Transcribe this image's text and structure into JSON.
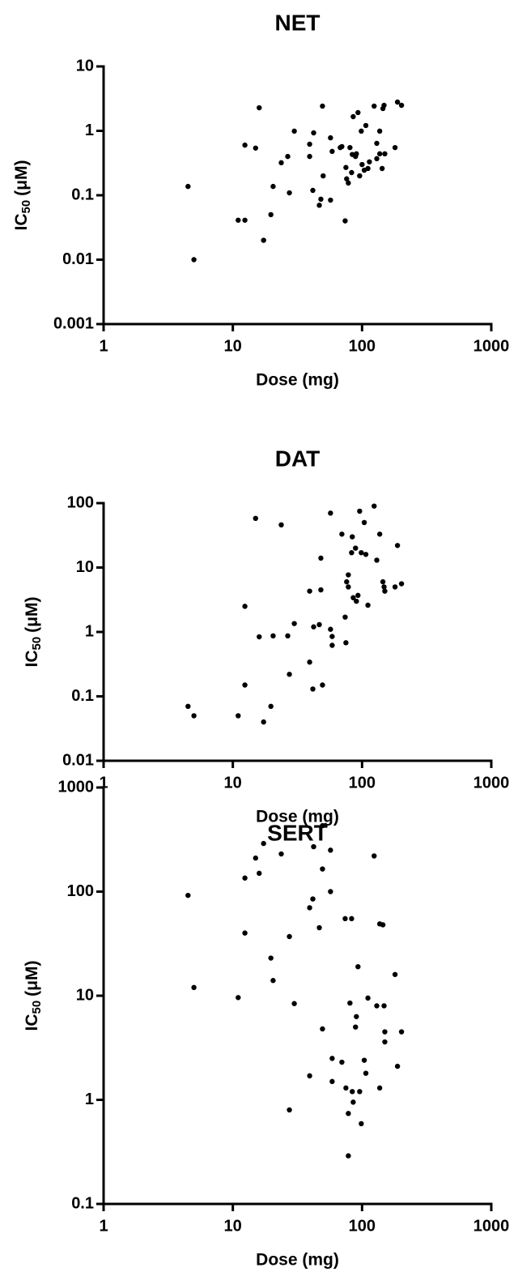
{
  "chart_data": [
    {
      "type": "scatter",
      "title": "NET",
      "xlabel": "Dose (mg)",
      "ylabel_parts": [
        "IC",
        "50",
        "(μM)"
      ],
      "xscale": "log",
      "yscale": "log",
      "xlim": [
        1,
        1000
      ],
      "ylim": [
        0.001,
        10
      ],
      "xticks": [
        1,
        10,
        100,
        1000
      ],
      "yticks": [
        0.001,
        0.01,
        0.1,
        1,
        10
      ],
      "color": "#000000",
      "series": [
        {
          "name": "NET",
          "x": [
            4.5,
            5,
            11,
            12.4,
            12.4,
            15,
            16,
            17.3,
            19.7,
            20.5,
            23.7,
            26.6,
            27.4,
            29.9,
            39.3,
            39.3,
            41.6,
            42.2,
            46.7,
            48,
            49.4,
            50,
            57,
            57,
            58.7,
            67.8,
            69.8,
            74,
            75,
            76,
            78.3,
            80.6,
            83,
            84,
            85.4,
            89,
            90.4,
            93,
            95.8,
            98.6,
            100,
            104,
            107,
            111,
            114,
            124,
            130,
            130,
            137,
            137,
            143,
            145,
            148,
            150,
            180,
            188,
            202
          ],
          "y": [
            0.137,
            0.01,
            0.041,
            0.041,
            0.6,
            0.54,
            2.28,
            0.02,
            0.05,
            0.137,
            0.32,
            0.4,
            0.109,
            0.99,
            0.62,
            0.4,
            0.119,
            0.93,
            0.07,
            0.087,
            2.42,
            0.2,
            0.084,
            0.78,
            0.48,
            0.55,
            0.57,
            0.04,
            0.27,
            0.18,
            0.155,
            0.55,
            0.225,
            0.43,
            1.66,
            0.4,
            0.44,
            1.92,
            0.2,
            0.99,
            0.3,
            0.245,
            1.21,
            0.26,
            0.33,
            2.42,
            0.64,
            0.37,
            0.99,
            0.44,
            0.26,
            2.22,
            2.49,
            0.44,
            0.55,
            2.8,
            2.49
          ]
        }
      ]
    },
    {
      "type": "scatter",
      "title": "DAT",
      "xlabel": "Dose (mg)",
      "ylabel_parts": [
        "IC",
        "50",
        "(μM)"
      ],
      "xscale": "log",
      "yscale": "log",
      "xlim": [
        1,
        1000
      ],
      "ylim": [
        0.01,
        100
      ],
      "xticks": [
        1,
        10,
        100,
        1000
      ],
      "yticks": [
        0.01,
        0.1,
        1,
        10,
        100
      ],
      "color": "#000000",
      "series": [
        {
          "name": "DAT",
          "x": [
            4.5,
            5,
            11,
            12.4,
            12.4,
            15,
            16,
            17.3,
            19.7,
            20.5,
            23.7,
            26.6,
            27.4,
            29.9,
            39.3,
            39.3,
            41.6,
            42.2,
            46.7,
            48,
            48,
            49.4,
            57,
            57,
            58.7,
            58.7,
            69.8,
            74,
            75,
            76,
            78.3,
            78.3,
            83,
            84,
            85.4,
            89,
            90.4,
            93,
            95.8,
            98.6,
            104,
            107,
            111,
            124,
            130,
            137,
            145,
            148,
            150,
            180,
            188,
            202
          ],
          "y": [
            0.07,
            0.05,
            0.05,
            2.5,
            0.15,
            58,
            0.84,
            0.04,
            0.07,
            0.87,
            46,
            0.87,
            0.22,
            1.35,
            0.34,
            4.3,
            0.13,
            1.2,
            1.3,
            14,
            4.5,
            0.15,
            1.1,
            70,
            0.85,
            0.62,
            33,
            1.7,
            0.68,
            6,
            7.7,
            5,
            17,
            30,
            3.4,
            20,
            3,
            3.7,
            75,
            17,
            50,
            16,
            2.6,
            90,
            13,
            33,
            6,
            5,
            4.3,
            5,
            22,
            5.6
          ]
        }
      ]
    },
    {
      "type": "scatter",
      "title": "SERT",
      "xlabel": "Dose (mg)",
      "ylabel_parts": [
        "IC",
        "50",
        "(μM)"
      ],
      "xscale": "log",
      "yscale": "log",
      "xlim": [
        1,
        1000
      ],
      "ylim": [
        0.1,
        1000
      ],
      "xticks": [
        1,
        10,
        100,
        1000
      ],
      "yticks": [
        0.1,
        1,
        10,
        100,
        1000
      ],
      "color": "#000000",
      "series": [
        {
          "name": "SERT",
          "x": [
            4.5,
            5,
            11,
            12.4,
            12.4,
            15,
            16,
            17.3,
            19.7,
            20.5,
            23.7,
            27.4,
            27.4,
            29.9,
            39.3,
            39.3,
            41.6,
            42.2,
            46.7,
            49.4,
            49.4,
            49.4,
            57,
            57,
            58.7,
            58.7,
            69.8,
            74,
            75,
            78.3,
            78.3,
            80.6,
            83,
            84,
            85.4,
            89,
            90.4,
            93,
            95.8,
            98.6,
            104,
            107,
            111,
            124,
            130,
            137,
            137,
            145,
            148,
            150,
            150,
            180,
            188,
            202
          ],
          "y": [
            92,
            12,
            9.6,
            135,
            40,
            210,
            150,
            290,
            23,
            14,
            230,
            37,
            0.8,
            8.4,
            70,
            1.7,
            85,
            270,
            45,
            430,
            165,
            4.8,
            250,
            100,
            2.5,
            1.5,
            2.3,
            55,
            1.3,
            0.29,
            0.74,
            8.5,
            55,
            1.2,
            0.95,
            5,
            6.3,
            19,
            1.2,
            0.59,
            2.4,
            1.8,
            9.5,
            220,
            8,
            1.3,
            49,
            48,
            8,
            4.5,
            3.6,
            16,
            2.1,
            4.5
          ]
        }
      ]
    }
  ]
}
